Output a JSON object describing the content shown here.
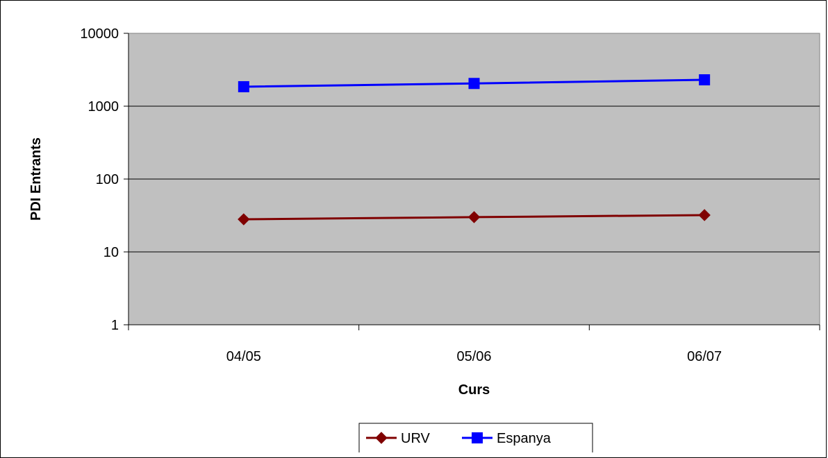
{
  "chart_data": {
    "type": "line",
    "title": "",
    "xlabel": "Curs",
    "ylabel": "PDI Entrants",
    "y_scale": "log",
    "ylim": [
      1,
      10000
    ],
    "y_ticks": [
      "1",
      "10",
      "100",
      "1000",
      "10000"
    ],
    "categories": [
      "04/05",
      "05/06",
      "06/07"
    ],
    "grid": true,
    "legend_position": "bottom",
    "plot_background": "#c0c0c0",
    "series": [
      {
        "name": "URV",
        "values": [
          28,
          30,
          32
        ],
        "color": "#800000",
        "marker": "diamond"
      },
      {
        "name": "Espanya",
        "values": [
          1850,
          2050,
          2300
        ],
        "color": "#0000ff",
        "marker": "square"
      }
    ]
  }
}
